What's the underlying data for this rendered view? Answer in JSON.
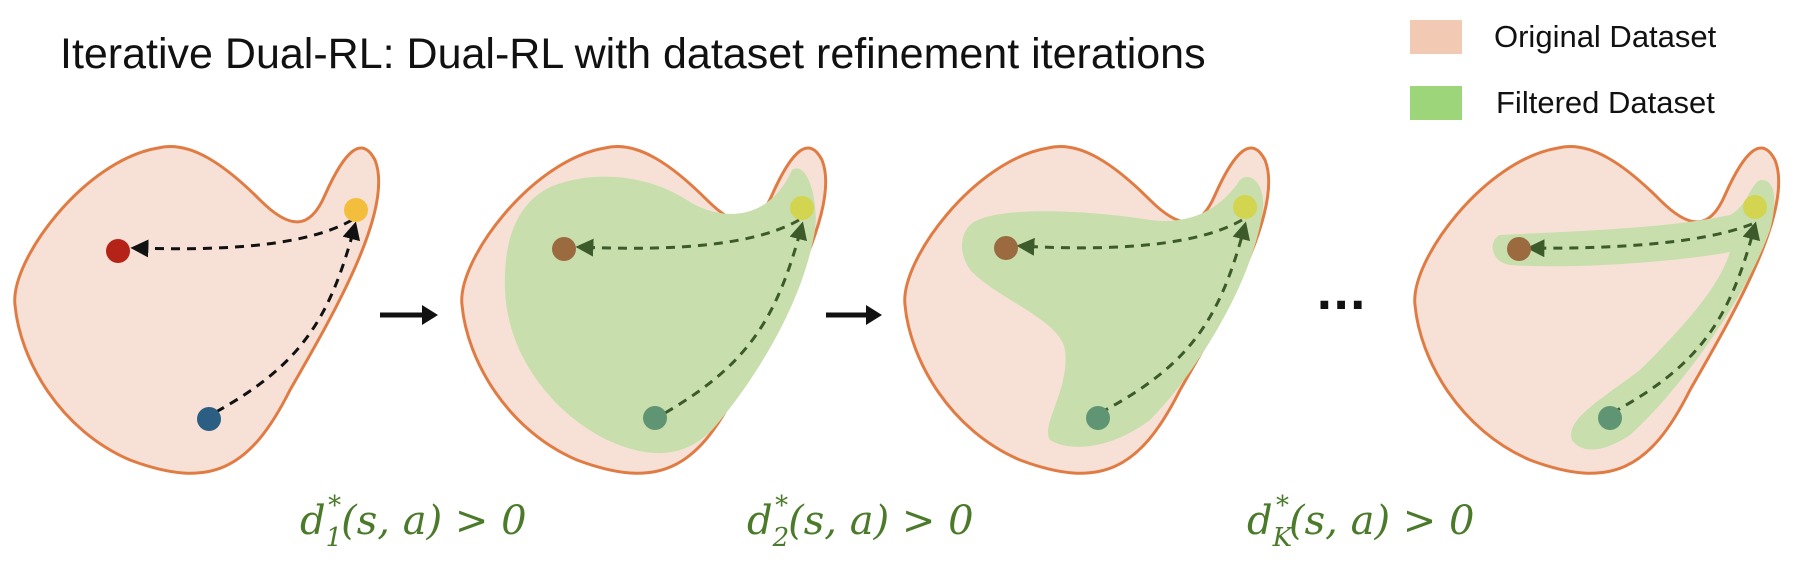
{
  "title": "Iterative Dual-RL: Dual-RL with dataset refinement iterations",
  "legend": [
    {
      "label": "Original Dataset",
      "color": "#f2c9b3"
    },
    {
      "label": "Filtered Dataset",
      "color": "#9dd67a"
    }
  ],
  "colors": {
    "blob_fill": "#f7e1d7",
    "blob_stroke": "#e07c43",
    "filtered_fill": "#c8dfad",
    "arrow_black": "#111111",
    "arrow_green": "#3d5a2a",
    "goal_yellow": "#f3be3c",
    "goal_filtered": "#d3d44f",
    "red_point": "#b52318",
    "blue_point": "#2b5e82",
    "brown_point": "#9b6a3f",
    "teal_point": "#5f9573"
  },
  "labels": [
    {
      "text": "d",
      "sub": "1",
      "sup": "*",
      "tail": "(s, a) > 0"
    },
    {
      "text": "d",
      "sub": "2",
      "sup": "*",
      "tail": "(s, a) > 0"
    },
    {
      "text": "d",
      "sub": "K",
      "sup": "*",
      "tail": "(s, a) > 0"
    }
  ],
  "ellipsis": "···",
  "arrow_icon": "right-arrow-icon"
}
